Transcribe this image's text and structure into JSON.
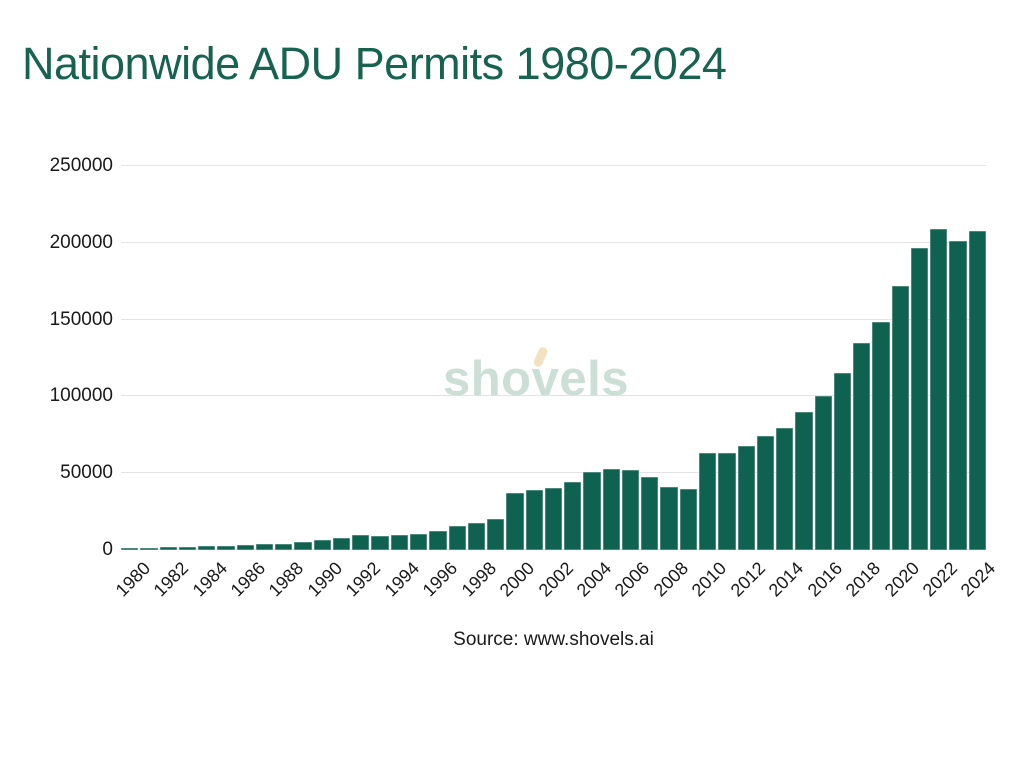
{
  "title": "Nationwide ADU Permits 1980-2024",
  "source": "Source: www.shovels.ai",
  "watermark": {
    "text": "shovels",
    "accent_icon": "shovel-handle-tick",
    "color": "#cbdfd7",
    "accent_color": "#f2e2c1"
  },
  "colors": {
    "title": "#186350",
    "bar": "#0f6150",
    "grid": "#e3e3e3",
    "axis_text": "#1a1a1a",
    "background": "#ffffff"
  },
  "chart_data": {
    "type": "bar",
    "title": "Nationwide ADU Permits 1980-2024",
    "xlabel": "",
    "ylabel": "",
    "categories": [
      "1980",
      "1981",
      "1982",
      "1983",
      "1984",
      "1985",
      "1986",
      "1987",
      "1988",
      "1989",
      "1990",
      "1991",
      "1992",
      "1993",
      "1994",
      "1995",
      "1996",
      "1997",
      "1998",
      "1999",
      "2000",
      "2001",
      "2002",
      "2003",
      "2004",
      "2005",
      "2006",
      "2007",
      "2008",
      "2009",
      "2010",
      "2011",
      "2012",
      "2013",
      "2014",
      "2015",
      "2016",
      "2017",
      "2018",
      "2019",
      "2020",
      "2021",
      "2022",
      "2023",
      "2024"
    ],
    "values": [
      1000,
      1100,
      1700,
      1800,
      2600,
      2800,
      3000,
      3700,
      4200,
      5000,
      6800,
      7900,
      9900,
      9100,
      10000,
      10400,
      12600,
      15400,
      17500,
      19900,
      37400,
      39100,
      40700,
      44500,
      51000,
      52500,
      51800,
      47800,
      41000,
      39500,
      63300,
      63000,
      67700,
      74200,
      79600,
      90000,
      100100,
      115300,
      134800,
      148400,
      172000,
      196800,
      208800,
      201400,
      207700
    ],
    "y_ticks": [
      0,
      50000,
      100000,
      150000,
      200000,
      250000
    ],
    "y_tick_labels": [
      "0",
      "50000",
      "100000",
      "150000",
      "200000",
      "250000"
    ],
    "x_tick_step": 2,
    "ylim": [
      0,
      250000
    ],
    "grid": "horizontal",
    "legend": "none",
    "bar_color": "#0f6150",
    "x_label_rotation": -45
  }
}
